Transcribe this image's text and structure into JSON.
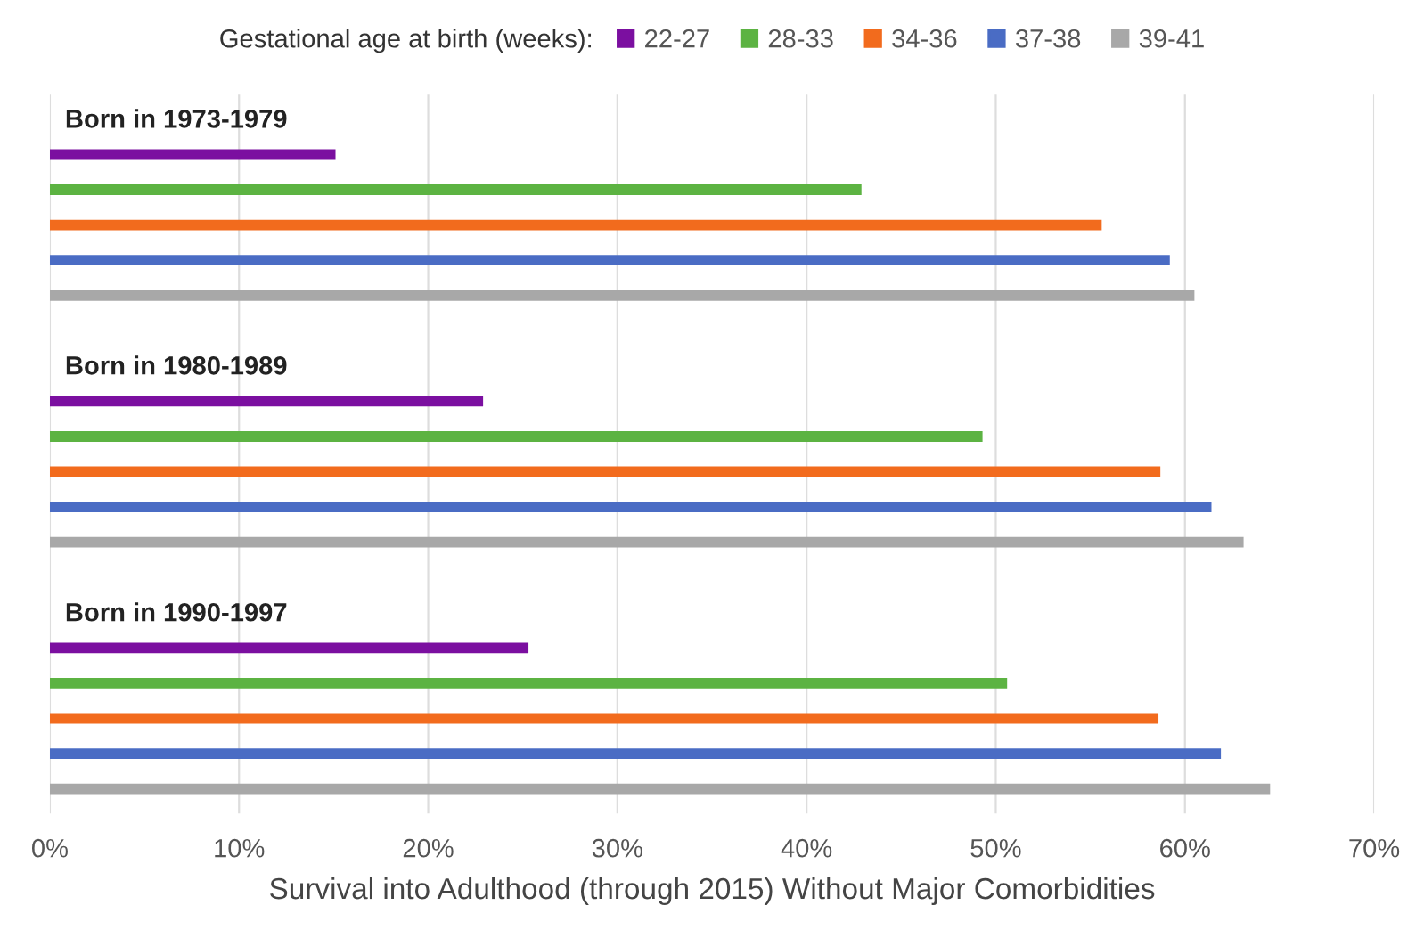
{
  "chart_data": {
    "type": "bar",
    "orientation": "horizontal",
    "xlabel": "Survival into Adulthood (through 2015) Without Major Comorbidities",
    "legend_title": "Gestational age at birth (weeks):",
    "legend": "top",
    "categories": [
      "Born in 1973-1979",
      "Born in 1980-1989",
      "Born in 1990-1997"
    ],
    "series": [
      {
        "name": "22-27",
        "color": "#7b0fa0",
        "values": [
          15.1,
          22.9,
          25.3
        ]
      },
      {
        "name": "28-33",
        "color": "#5cb342",
        "values": [
          42.9,
          49.3,
          50.6
        ]
      },
      {
        "name": "34-36",
        "color": "#f26b1d",
        "values": [
          55.6,
          58.7,
          58.6
        ]
      },
      {
        "name": "37-38",
        "color": "#4a6cc4",
        "values": [
          59.2,
          61.4,
          61.9
        ]
      },
      {
        "name": "39-41",
        "color": "#a8a8a8",
        "values": [
          60.5,
          63.1,
          64.5
        ]
      }
    ],
    "xlim": [
      0,
      70
    ],
    "xticks": [
      {
        "value": 0,
        "label": "0%"
      },
      {
        "value": 10,
        "label": "10%"
      },
      {
        "value": 20,
        "label": "20%"
      },
      {
        "value": 30,
        "label": "30%"
      },
      {
        "value": 40,
        "label": "40%"
      },
      {
        "value": 50,
        "label": "50%"
      },
      {
        "value": 60,
        "label": "60%"
      },
      {
        "value": 70,
        "label": "70%"
      }
    ],
    "grid": "x"
  }
}
